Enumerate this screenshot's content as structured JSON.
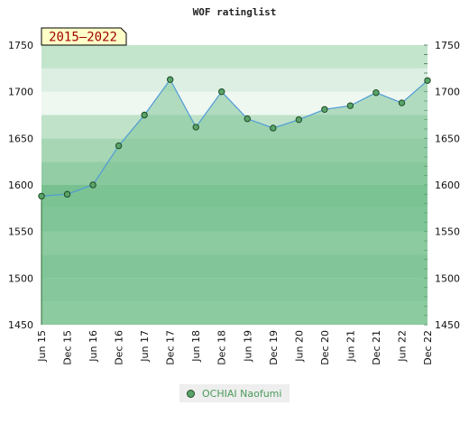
{
  "chart_data": {
    "type": "line",
    "title": "WOF ratinglist",
    "badge": "2015–2022",
    "x": [
      "Jun 15",
      "Dec 15",
      "Jun 16",
      "Dec 16",
      "Jun 17",
      "Dec 17",
      "Jun 18",
      "Dec 18",
      "Jun 19",
      "Dec 19",
      "Jun 20",
      "Dec 20",
      "Jun 21",
      "Dec 21",
      "Jun 22",
      "Dec 22"
    ],
    "series": [
      {
        "name": "OCHIAI Naofumi",
        "values": [
          1588,
          1590,
          1600,
          1642,
          1675,
          1713,
          1662,
          1700,
          1671,
          1661,
          1670,
          1681,
          1685,
          1699,
          1688,
          1712
        ]
      }
    ],
    "ylim": [
      1450,
      1750
    ],
    "yticks": [
      1450,
      1500,
      1550,
      1600,
      1650,
      1700,
      1750
    ],
    "xlabel": "",
    "ylabel": "",
    "legend_position": "bottom-center",
    "colors": {
      "line": "#4f9bd6",
      "area": "#80c497",
      "marker": "#5aa46a",
      "marker_edge": "#1f4a25"
    }
  }
}
